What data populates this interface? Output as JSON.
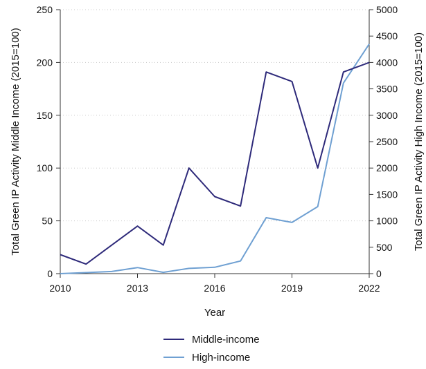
{
  "chart_data": {
    "type": "line",
    "xlabel": "Year",
    "ylabel_left": "Total Green IP Activity Middle Income  (2015=100)",
    "ylabel_right": "Total Green IP Activity High Income (2015=100)",
    "x": [
      2010,
      2011,
      2012,
      2013,
      2014,
      2015,
      2016,
      2017,
      2018,
      2019,
      2020,
      2021,
      2022
    ],
    "x_ticks": [
      "2010",
      "2013",
      "2016",
      "2019",
      "2022"
    ],
    "y_left_ticks": [
      "0",
      "50",
      "100",
      "150",
      "200",
      "250"
    ],
    "y_right_ticks": [
      "0",
      "500",
      "1000",
      "1500",
      "2000",
      "2500",
      "3000",
      "3500",
      "4000",
      "4500",
      "5000"
    ],
    "ylim_left": [
      0,
      250
    ],
    "ylim_right": [
      0,
      5000
    ],
    "grid": "horizontal dotted",
    "legend_position": "bottom",
    "series": [
      {
        "name": "Middle-income",
        "axis": "left",
        "color": "#2e2a7a",
        "values": [
          18,
          9,
          27,
          45,
          27,
          100,
          73,
          64,
          191,
          182,
          100,
          191,
          200
        ]
      },
      {
        "name": "High-income",
        "axis": "right",
        "color": "#6fa0d2",
        "values": [
          0,
          20,
          40,
          115,
          25,
          100,
          120,
          240,
          1060,
          970,
          1270,
          3610,
          4350
        ]
      }
    ]
  }
}
